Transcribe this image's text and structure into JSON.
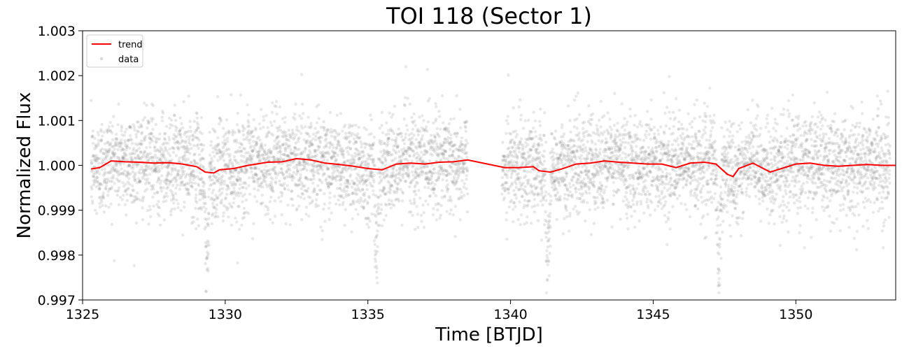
{
  "chart_data": {
    "type": "scatter",
    "title": "TOI 118 (Sector 1)",
    "xlabel": "Time [BTJD]",
    "ylabel": "Normalized Flux",
    "xlim": [
      1325,
      1353.5
    ],
    "ylim": [
      0.997,
      1.003
    ],
    "xticks": [
      1325,
      1330,
      1335,
      1340,
      1345,
      1350
    ],
    "xtick_labels": [
      "1325",
      "1330",
      "1335",
      "1340",
      "1345",
      "1350"
    ],
    "yticks": [
      0.997,
      0.998,
      0.999,
      1.0,
      1.001,
      1.002,
      1.003
    ],
    "ytick_labels": [
      "0.997",
      "0.998",
      "0.999",
      "1.000",
      "1.001",
      "1.002",
      "1.003"
    ],
    "grid": false,
    "legend_position": "top-left",
    "colors": {
      "trend": "#ff0000",
      "data": "#808080"
    },
    "data_segments": [
      {
        "t_start": 1325.3,
        "t_end": 1338.5,
        "noise_sigma": 0.00055
      },
      {
        "t_start": 1339.7,
        "t_end": 1353.3,
        "noise_sigma": 0.00055
      }
    ],
    "transits": [
      {
        "t_center": 1329.35,
        "depth": 0.0025,
        "duration": 0.25
      },
      {
        "t_center": 1335.3,
        "depth": 0.0025,
        "duration": 0.25
      },
      {
        "t_center": 1341.3,
        "depth": 0.0025,
        "duration": 0.25
      },
      {
        "t_center": 1347.3,
        "depth": 0.0025,
        "duration": 0.25
      }
    ],
    "series": [
      {
        "name": "trend",
        "kind": "line",
        "x": [
          1325.3,
          1325.6,
          1326.0,
          1326.5,
          1327.0,
          1327.5,
          1328.0,
          1328.5,
          1329.0,
          1329.3,
          1329.6,
          1329.8,
          1330.3,
          1330.8,
          1331.5,
          1332.0,
          1332.5,
          1333.0,
          1333.5,
          1334.0,
          1334.5,
          1335.0,
          1335.5,
          1336.0,
          1336.5,
          1337.0,
          1337.5,
          1338.0,
          1338.5,
          1339.8,
          1340.3,
          1340.8,
          1341.0,
          1341.4,
          1341.8,
          1342.3,
          1342.8,
          1343.3,
          1343.8,
          1344.3,
          1344.8,
          1345.3,
          1345.8,
          1346.3,
          1346.8,
          1347.2,
          1347.6,
          1347.8,
          1348.0,
          1348.5,
          1348.8,
          1349.1,
          1349.5,
          1350.0,
          1350.5,
          1351.0,
          1351.5,
          1352.0,
          1352.5,
          1353.0,
          1353.5
        ],
        "y": [
          0.99992,
          0.99995,
          1.0001,
          1.00008,
          1.00007,
          1.00005,
          1.00006,
          1.00003,
          0.99997,
          0.99985,
          0.99983,
          0.9999,
          0.99993,
          1.0,
          1.00007,
          1.00008,
          1.00015,
          1.00012,
          1.00005,
          1.00002,
          0.99998,
          0.99993,
          0.9999,
          1.00003,
          1.00005,
          1.00003,
          1.00007,
          1.00008,
          1.00012,
          0.99995,
          0.99995,
          0.99997,
          0.99988,
          0.99985,
          0.99992,
          1.00003,
          1.00005,
          1.0001,
          1.00007,
          1.00005,
          1.00003,
          1.00003,
          0.99995,
          1.00005,
          1.00007,
          1.00003,
          0.9998,
          0.99975,
          0.99993,
          1.00005,
          0.99995,
          0.99985,
          0.99993,
          1.00003,
          1.00005,
          1.0,
          0.99998,
          1.0,
          1.00002,
          1.0,
          1.0
        ]
      },
      {
        "name": "data",
        "kind": "scatter",
        "points": "generated from data_segments, transits and the trend series"
      }
    ]
  }
}
